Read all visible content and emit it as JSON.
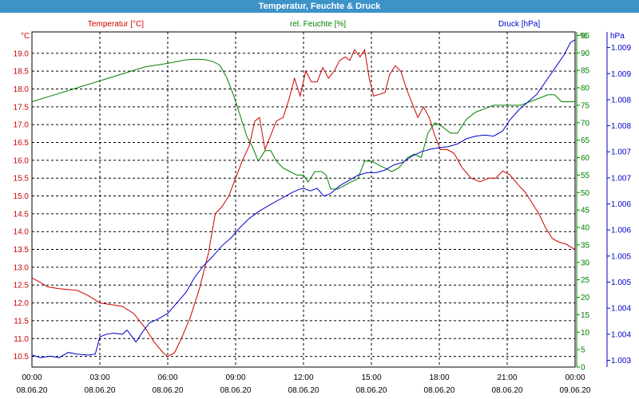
{
  "window": {
    "title": "Temperatur, Feuchte & Druck"
  },
  "chart_data": {
    "type": "line",
    "title": "Temperatur, Feuchte & Druck",
    "colors": {
      "temperature": "#cc0000",
      "humidity": "#008000",
      "pressure": "#0000cc",
      "grid": "#000000",
      "titlebar": "#3d93c8"
    },
    "grid": true,
    "x_ticks": [
      {
        "time": "00:00",
        "date": "08.06.20"
      },
      {
        "time": "03:00",
        "date": "08.06.20"
      },
      {
        "time": "06:00",
        "date": "08.06.20"
      },
      {
        "time": "09:00",
        "date": "08.06.20"
      },
      {
        "time": "12:00",
        "date": "08.06.20"
      },
      {
        "time": "15:00",
        "date": "08.06.20"
      },
      {
        "time": "18:00",
        "date": "08.06.20"
      },
      {
        "time": "21:00",
        "date": "08.06.20"
      },
      {
        "time": "00:00",
        "date": "09.06.20"
      }
    ],
    "xlim": [
      0,
      24
    ],
    "axes": {
      "temperature": {
        "label": "Temperatur [°C]",
        "unit": "°C",
        "ylim": [
          10.2,
          19.6
        ],
        "ticks": [
          "10.5",
          "11.0",
          "11.5",
          "12.0",
          "12.5",
          "13.0",
          "13.5",
          "14.0",
          "14.5",
          "15.0",
          "15.5",
          "16.0",
          "16.5",
          "17.0",
          "17.5",
          "18.0",
          "18.5",
          "19.0"
        ]
      },
      "humidity": {
        "label": "rel. Feuchte [%]",
        "unit": "%",
        "ylim": [
          0,
          96
        ],
        "ticks": [
          "0",
          "5",
          "10",
          "15",
          "20",
          "25",
          "30",
          "35",
          "40",
          "45",
          "50",
          "55",
          "60",
          "65",
          "70",
          "75",
          "80",
          "85",
          "90",
          "95"
        ]
      },
      "pressure": {
        "label": "Druck [hPa]",
        "unit": "hPa",
        "ylim": [
          1002.87,
          1009.3
        ],
        "ticks": [
          {
            "v": 1003.0,
            "label": "1.003"
          },
          {
            "v": 1003.5,
            "label": "1.004"
          },
          {
            "v": 1004.0,
            "label": "1.004"
          },
          {
            "v": 1004.5,
            "label": "1.005"
          },
          {
            "v": 1005.0,
            "label": "1.005"
          },
          {
            "v": 1005.5,
            "label": "1.006"
          },
          {
            "v": 1006.0,
            "label": "1.006"
          },
          {
            "v": 1006.5,
            "label": "1.007"
          },
          {
            "v": 1007.0,
            "label": "1.007"
          },
          {
            "v": 1007.5,
            "label": "1.008"
          },
          {
            "v": 1008.0,
            "label": "1.008"
          },
          {
            "v": 1008.5,
            "label": "1.009"
          },
          {
            "v": 1009.0,
            "label": "1.009"
          }
        ]
      }
    },
    "series": [
      {
        "name": "Temperatur [°C]",
        "axis": "temperature",
        "points": [
          [
            0,
            12.7
          ],
          [
            0.3,
            12.6
          ],
          [
            0.7,
            12.45
          ],
          [
            1.2,
            12.4
          ],
          [
            2,
            12.35
          ],
          [
            2.5,
            12.2
          ],
          [
            3,
            12.0
          ],
          [
            3.5,
            11.95
          ],
          [
            4,
            11.9
          ],
          [
            4.5,
            11.7
          ],
          [
            5,
            11.3
          ],
          [
            5.4,
            10.9
          ],
          [
            5.8,
            10.6
          ],
          [
            6,
            10.5
          ],
          [
            6.3,
            10.6
          ],
          [
            6.6,
            11.0
          ],
          [
            7,
            11.6
          ],
          [
            7.4,
            12.4
          ],
          [
            7.8,
            13.4
          ],
          [
            8.1,
            14.5
          ],
          [
            8.4,
            14.7
          ],
          [
            8.7,
            15.0
          ],
          [
            9,
            15.5
          ],
          [
            9.3,
            16.0
          ],
          [
            9.6,
            16.4
          ],
          [
            9.85,
            17.1
          ],
          [
            10.05,
            17.2
          ],
          [
            10.3,
            16.3
          ],
          [
            10.55,
            16.7
          ],
          [
            10.8,
            17.1
          ],
          [
            11.1,
            17.2
          ],
          [
            11.35,
            17.7
          ],
          [
            11.6,
            18.3
          ],
          [
            11.85,
            17.8
          ],
          [
            12.1,
            18.5
          ],
          [
            12.35,
            18.2
          ],
          [
            12.6,
            18.2
          ],
          [
            12.85,
            18.6
          ],
          [
            13.1,
            18.3
          ],
          [
            13.35,
            18.5
          ],
          [
            13.6,
            18.8
          ],
          [
            13.85,
            18.9
          ],
          [
            14.05,
            18.8
          ],
          [
            14.25,
            19.1
          ],
          [
            14.5,
            18.9
          ],
          [
            14.7,
            19.1
          ],
          [
            14.9,
            18.3
          ],
          [
            15.1,
            17.8
          ],
          [
            15.35,
            17.85
          ],
          [
            15.6,
            17.9
          ],
          [
            15.8,
            18.4
          ],
          [
            16.05,
            18.65
          ],
          [
            16.3,
            18.5
          ],
          [
            16.55,
            18.0
          ],
          [
            16.8,
            17.6
          ],
          [
            17.05,
            17.2
          ],
          [
            17.3,
            17.5
          ],
          [
            17.55,
            17.2
          ],
          [
            17.8,
            16.7
          ],
          [
            18.05,
            16.3
          ],
          [
            18.35,
            16.3
          ],
          [
            18.65,
            16.2
          ],
          [
            19,
            15.8
          ],
          [
            19.4,
            15.5
          ],
          [
            19.8,
            15.4
          ],
          [
            20.2,
            15.5
          ],
          [
            20.5,
            15.5
          ],
          [
            20.8,
            15.7
          ],
          [
            21.1,
            15.6
          ],
          [
            21.5,
            15.3
          ],
          [
            21.8,
            15.1
          ],
          [
            22.1,
            14.8
          ],
          [
            22.4,
            14.5
          ],
          [
            22.7,
            14.1
          ],
          [
            23,
            13.8
          ],
          [
            23.3,
            13.7
          ],
          [
            23.6,
            13.65
          ],
          [
            23.85,
            13.55
          ],
          [
            24,
            13.5
          ]
        ]
      },
      {
        "name": "rel. Feuchte [%]",
        "axis": "humidity",
        "points": [
          [
            0,
            76
          ],
          [
            1,
            78
          ],
          [
            2,
            80
          ],
          [
            3,
            82
          ],
          [
            4,
            84
          ],
          [
            5,
            86
          ],
          [
            6,
            87
          ],
          [
            6.8,
            88
          ],
          [
            7.3,
            88.2
          ],
          [
            7.7,
            88
          ],
          [
            8,
            87.5
          ],
          [
            8.3,
            86.5
          ],
          [
            8.6,
            83
          ],
          [
            8.9,
            78
          ],
          [
            9.2,
            72
          ],
          [
            9.5,
            66
          ],
          [
            9.75,
            63
          ],
          [
            10,
            59
          ],
          [
            10.3,
            62
          ],
          [
            10.55,
            62
          ],
          [
            10.8,
            59
          ],
          [
            11.1,
            57
          ],
          [
            11.4,
            56
          ],
          [
            11.7,
            55
          ],
          [
            12,
            55
          ],
          [
            12.2,
            53
          ],
          [
            12.5,
            56
          ],
          [
            12.8,
            56
          ],
          [
            13,
            55
          ],
          [
            13.2,
            51
          ],
          [
            13.5,
            51
          ],
          [
            13.8,
            52
          ],
          [
            14.1,
            53
          ],
          [
            14.4,
            54
          ],
          [
            14.7,
            59
          ],
          [
            15,
            59
          ],
          [
            15.3,
            58
          ],
          [
            15.6,
            57
          ],
          [
            15.9,
            56
          ],
          [
            16.2,
            57
          ],
          [
            16.6,
            60
          ],
          [
            16.9,
            61
          ],
          [
            17.2,
            60
          ],
          [
            17.5,
            67
          ],
          [
            17.8,
            70
          ],
          [
            18.1,
            69
          ],
          [
            18.5,
            67
          ],
          [
            18.8,
            67
          ],
          [
            19.2,
            71
          ],
          [
            19.6,
            73
          ],
          [
            20,
            74
          ],
          [
            20.4,
            75
          ],
          [
            20.8,
            75
          ],
          [
            21.2,
            75
          ],
          [
            21.6,
            75
          ],
          [
            22,
            76
          ],
          [
            22.4,
            77
          ],
          [
            22.8,
            78
          ],
          [
            23.1,
            78
          ],
          [
            23.4,
            76
          ],
          [
            23.7,
            76
          ],
          [
            24,
            76
          ]
        ]
      },
      {
        "name": "Druck [hPa]",
        "axis": "pressure",
        "points": [
          [
            0,
            1003.1
          ],
          [
            0.4,
            1003.05
          ],
          [
            0.8,
            1003.08
          ],
          [
            1.2,
            1003.05
          ],
          [
            1.6,
            1003.15
          ],
          [
            2,
            1003.12
          ],
          [
            2.5,
            1003.1
          ],
          [
            2.8,
            1003.12
          ],
          [
            3.0,
            1003.45
          ],
          [
            3.3,
            1003.5
          ],
          [
            3.6,
            1003.52
          ],
          [
            4,
            1003.5
          ],
          [
            4.2,
            1003.58
          ],
          [
            4.6,
            1003.35
          ],
          [
            4.9,
            1003.55
          ],
          [
            5.2,
            1003.72
          ],
          [
            5.6,
            1003.8
          ],
          [
            6,
            1003.9
          ],
          [
            6.4,
            1004.1
          ],
          [
            6.8,
            1004.3
          ],
          [
            7.2,
            1004.6
          ],
          [
            7.6,
            1004.82
          ],
          [
            8,
            1005.0
          ],
          [
            8.4,
            1005.2
          ],
          [
            8.8,
            1005.35
          ],
          [
            9.2,
            1005.55
          ],
          [
            9.6,
            1005.72
          ],
          [
            10,
            1005.85
          ],
          [
            10.5,
            1005.98
          ],
          [
            11,
            1006.1
          ],
          [
            11.5,
            1006.22
          ],
          [
            11.8,
            1006.28
          ],
          [
            12,
            1006.3
          ],
          [
            12.3,
            1006.25
          ],
          [
            12.6,
            1006.3
          ],
          [
            12.9,
            1006.15
          ],
          [
            13.2,
            1006.2
          ],
          [
            13.6,
            1006.35
          ],
          [
            14,
            1006.45
          ],
          [
            14.4,
            1006.55
          ],
          [
            14.8,
            1006.6
          ],
          [
            15.2,
            1006.6
          ],
          [
            15.6,
            1006.65
          ],
          [
            16,
            1006.75
          ],
          [
            16.4,
            1006.8
          ],
          [
            16.8,
            1006.92
          ],
          [
            17.2,
            1007.0
          ],
          [
            17.6,
            1007.05
          ],
          [
            18,
            1007.08
          ],
          [
            18.4,
            1007.1
          ],
          [
            18.8,
            1007.15
          ],
          [
            19.2,
            1007.25
          ],
          [
            19.6,
            1007.3
          ],
          [
            20,
            1007.32
          ],
          [
            20.4,
            1007.3
          ],
          [
            20.8,
            1007.4
          ],
          [
            21.1,
            1007.6
          ],
          [
            21.5,
            1007.8
          ],
          [
            21.9,
            1007.95
          ],
          [
            22.3,
            1008.1
          ],
          [
            22.7,
            1008.35
          ],
          [
            23.1,
            1008.6
          ],
          [
            23.5,
            1008.85
          ],
          [
            23.8,
            1009.1
          ],
          [
            24,
            1009.15
          ]
        ]
      }
    ]
  }
}
